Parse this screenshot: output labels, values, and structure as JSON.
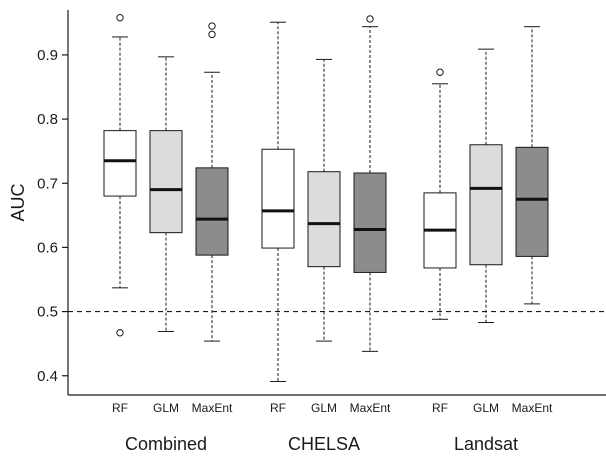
{
  "chart_data": {
    "type": "box",
    "ylabel": "AUC",
    "ylim": [
      0.37,
      0.97
    ],
    "yticks": [
      0.4,
      0.5,
      0.6,
      0.7,
      0.8,
      0.9
    ],
    "reference_line": 0.5,
    "colors": {
      "RF": "#ffffff",
      "GLM": "#dcdcdc",
      "MaxEnt": "#8c8c8c"
    },
    "groups": [
      {
        "label": "Combined",
        "boxes": [
          {
            "name": "RF",
            "whisker_low": 0.537,
            "q1": 0.68,
            "median": 0.735,
            "q3": 0.782,
            "whisker_high": 0.928,
            "outliers": [
              0.958,
              0.467
            ]
          },
          {
            "name": "GLM",
            "whisker_low": 0.469,
            "q1": 0.623,
            "median": 0.69,
            "q3": 0.782,
            "whisker_high": 0.897,
            "outliers": []
          },
          {
            "name": "MaxEnt",
            "whisker_low": 0.454,
            "q1": 0.588,
            "median": 0.644,
            "q3": 0.724,
            "whisker_high": 0.873,
            "outliers": [
              0.932,
              0.945
            ]
          }
        ]
      },
      {
        "label": "CHELSA",
        "boxes": [
          {
            "name": "RF",
            "whisker_low": 0.391,
            "q1": 0.599,
            "median": 0.657,
            "q3": 0.753,
            "whisker_high": 0.951,
            "outliers": []
          },
          {
            "name": "GLM",
            "whisker_low": 0.454,
            "q1": 0.57,
            "median": 0.637,
            "q3": 0.718,
            "whisker_high": 0.893,
            "outliers": []
          },
          {
            "name": "MaxEnt",
            "whisker_low": 0.438,
            "q1": 0.561,
            "median": 0.628,
            "q3": 0.716,
            "whisker_high": 0.944,
            "outliers": [
              0.956
            ]
          }
        ]
      },
      {
        "label": "Landsat",
        "boxes": [
          {
            "name": "RF",
            "whisker_low": 0.488,
            "q1": 0.568,
            "median": 0.627,
            "q3": 0.685,
            "whisker_high": 0.855,
            "outliers": [
              0.873
            ]
          },
          {
            "name": "GLM",
            "whisker_low": 0.483,
            "q1": 0.573,
            "median": 0.692,
            "q3": 0.76,
            "whisker_high": 0.909,
            "outliers": []
          },
          {
            "name": "MaxEnt",
            "whisker_low": 0.512,
            "q1": 0.586,
            "median": 0.675,
            "q3": 0.756,
            "whisker_high": 0.944,
            "outliers": []
          }
        ]
      }
    ]
  }
}
